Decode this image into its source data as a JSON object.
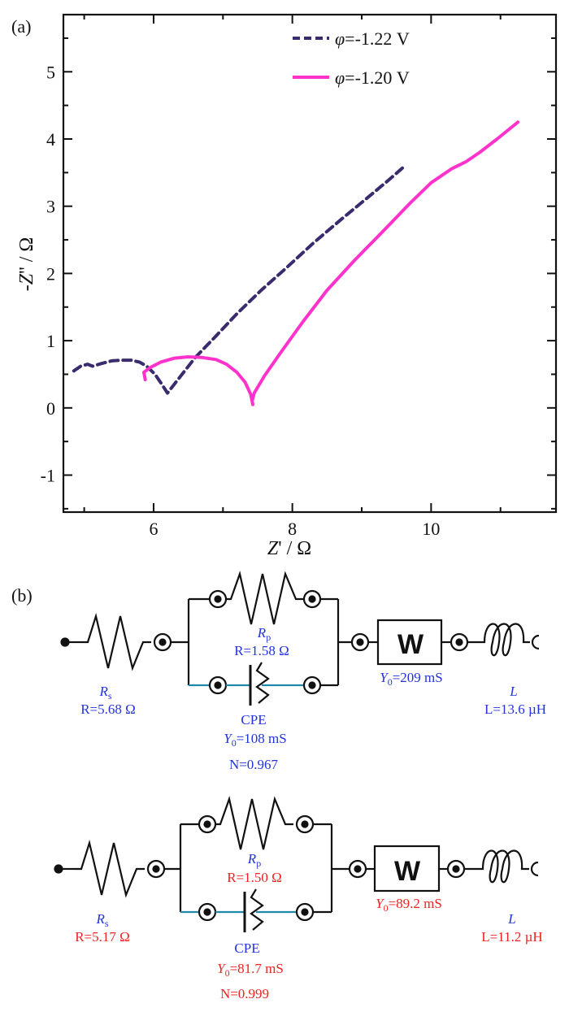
{
  "panel_a": "(a)",
  "panel_b": "(b)",
  "chart_data": {
    "type": "line",
    "xlabel": "Z' / Ω",
    "ylabel": "-Z'' / Ω",
    "xlim": [
      4.7,
      11.8
    ],
    "ylim": [
      -1.55,
      5.85
    ],
    "xticks": [
      6,
      8,
      10
    ],
    "yticks": [
      -1,
      0,
      1,
      2,
      3,
      4,
      5
    ],
    "grid": false,
    "legend_position": "top-right",
    "series": [
      {
        "name": "φ=-1.22 V",
        "color": "#3a2a6e",
        "dash": "dashed",
        "x": [
          4.85,
          4.95,
          5.05,
          5.12,
          5.25,
          5.4,
          5.55,
          5.68,
          5.8,
          5.9,
          6.02,
          6.12,
          6.2,
          6.35,
          6.6,
          6.9,
          7.2,
          7.55,
          7.9,
          8.3,
          8.7,
          9.1,
          9.4,
          9.6
        ],
        "y": [
          0.55,
          0.62,
          0.65,
          0.62,
          0.66,
          0.7,
          0.71,
          0.71,
          0.68,
          0.62,
          0.5,
          0.35,
          0.22,
          0.42,
          0.75,
          1.07,
          1.4,
          1.75,
          2.07,
          2.45,
          2.8,
          3.14,
          3.4,
          3.58
        ]
      },
      {
        "name": "φ=-1.20 V",
        "color": "#ff33cc",
        "dash": "solid",
        "x": [
          5.88,
          5.86,
          5.95,
          6.1,
          6.3,
          6.5,
          6.7,
          6.9,
          7.05,
          7.2,
          7.32,
          7.4,
          7.43,
          7.42,
          7.45,
          7.6,
          7.85,
          8.15,
          8.5,
          8.9,
          9.3,
          9.7,
          10.0,
          10.3,
          10.5,
          10.7,
          10.95,
          11.25
        ],
        "y": [
          0.42,
          0.53,
          0.6,
          0.68,
          0.74,
          0.76,
          0.75,
          0.72,
          0.65,
          0.53,
          0.38,
          0.2,
          0.05,
          0.1,
          0.22,
          0.48,
          0.85,
          1.28,
          1.75,
          2.2,
          2.62,
          3.05,
          3.35,
          3.56,
          3.66,
          3.8,
          4.0,
          4.25
        ]
      }
    ]
  },
  "circuits": [
    {
      "color": "blue",
      "rs_name": "R",
      "rs_sub": "s",
      "rs_val": "R=5.68 Ω",
      "rp_name": "R",
      "rp_sub": "p",
      "rp_val": "R=1.58 Ω",
      "cpe_name": "CPE",
      "cpe_y0": "=108 mS",
      "cpe_n": "N=0.967",
      "w_name": "W",
      "w_y0": "=209 mS",
      "l_name": "L",
      "l_val": "L=13.6 µH"
    },
    {
      "color": "red",
      "rs_name": "R",
      "rs_sub": "s",
      "rs_val": "R=5.17 Ω",
      "rp_name": "R",
      "rp_sub": "p",
      "rp_val": "R=1.50 Ω",
      "cpe_name": "CPE",
      "cpe_y0": "=81.7 mS",
      "cpe_n": "N=0.999",
      "w_name": "W",
      "w_y0": "=89.2 mS",
      "l_name": "L",
      "l_val": "L=11.2 µH"
    }
  ],
  "y0_letter": "Y",
  "y0_sub": "0"
}
